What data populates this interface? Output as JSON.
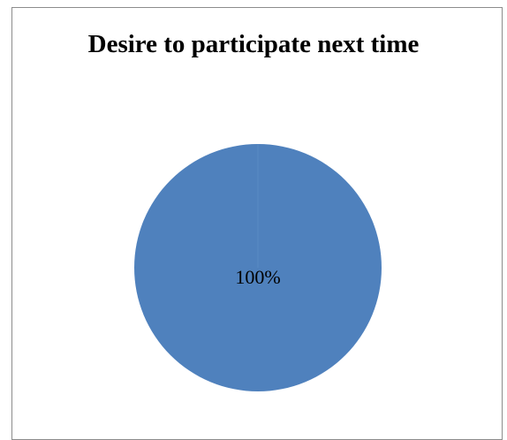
{
  "chart_data": {
    "type": "pie",
    "title": "Desire to participate next time",
    "slices": [
      {
        "label": "",
        "value": 100,
        "color": "#4f81bd",
        "data_label": "100%"
      }
    ],
    "legend": "none"
  }
}
